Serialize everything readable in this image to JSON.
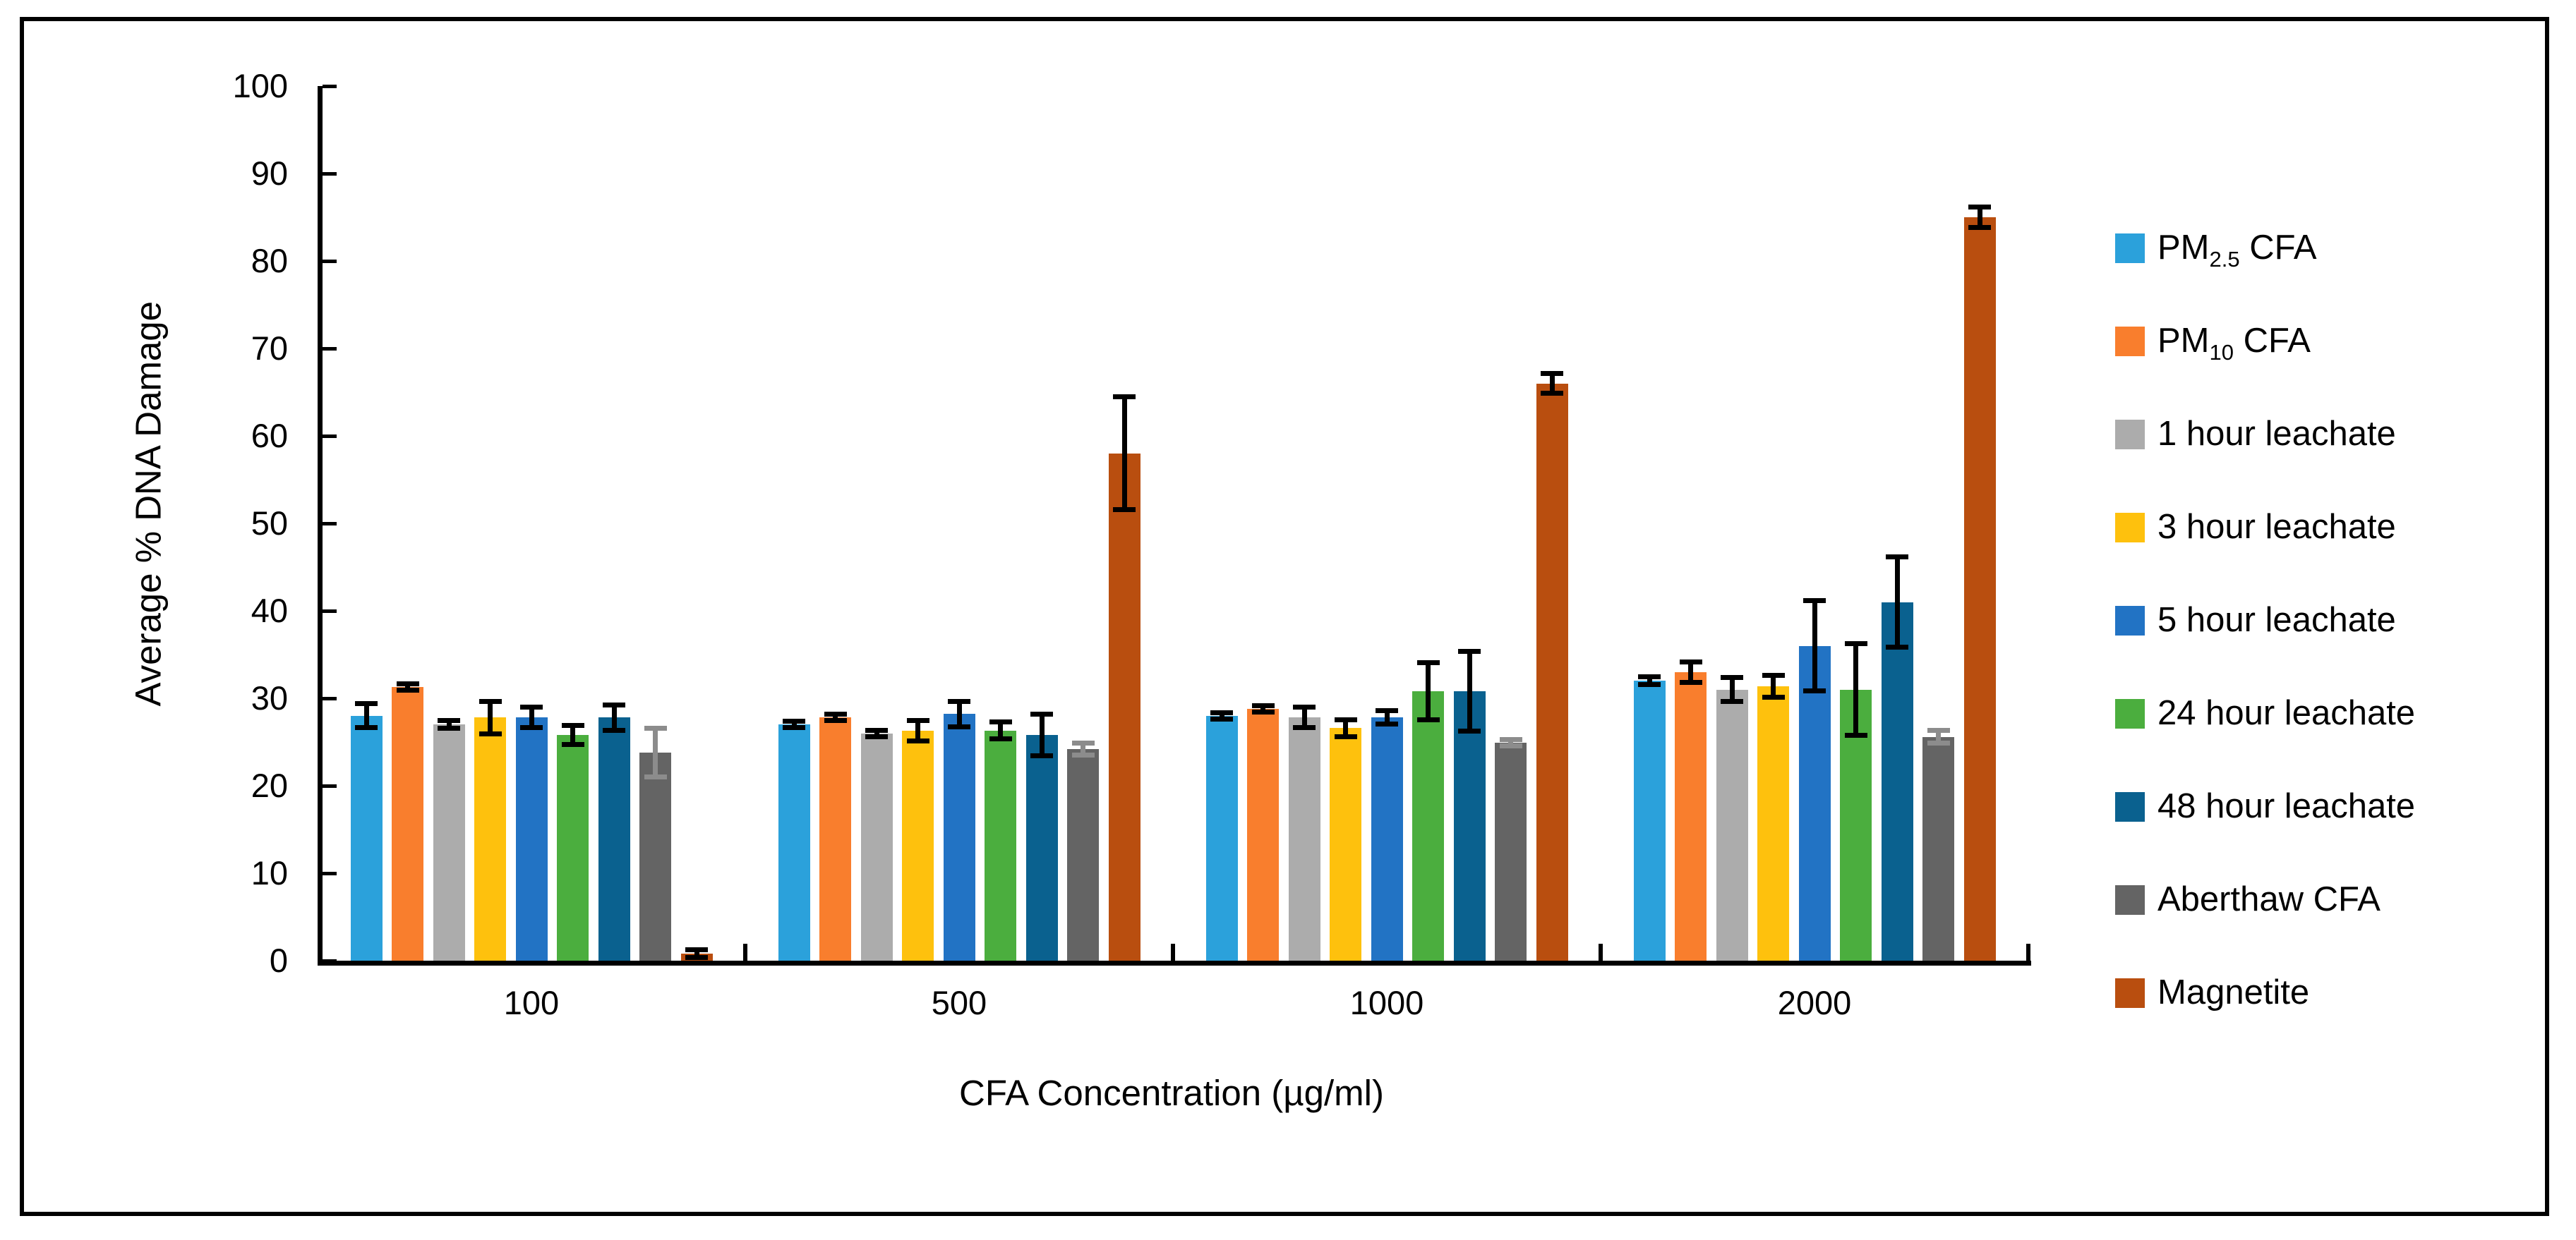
{
  "figure": {
    "y_axis_title": "Average % DNA Damage",
    "x_axis_title": "CFA Concentration (µg/ml)"
  },
  "chart_data": {
    "type": "bar",
    "title": "",
    "xlabel": "CFA Concentration (µg/ml)",
    "ylabel": "Average % DNA Damage",
    "ylim": [
      0,
      100
    ],
    "ytick_step": 10,
    "yticks": [
      0,
      10,
      20,
      30,
      40,
      50,
      60,
      70,
      80,
      90,
      100
    ],
    "grid": false,
    "error_bars": true,
    "legend_position": "right",
    "categories": [
      "100",
      "500",
      "1000",
      "2000"
    ],
    "series": [
      {
        "key": "pm25",
        "name": "PM2.5 CFA",
        "label_pre": "PM",
        "label_sub": "2.5",
        "label_post": " CFA",
        "color": "#2BA1DB",
        "error_color": "#000000",
        "values": [
          28,
          27,
          28,
          32
        ],
        "errors": [
          1.4,
          0.4,
          0.4,
          0.5
        ]
      },
      {
        "key": "pm10",
        "name": "PM10 CFA",
        "label_pre": "PM",
        "label_sub": "10",
        "label_post": " CFA",
        "color": "#F97E2D",
        "error_color": "#000000",
        "values": [
          31.3,
          27.8,
          28.8,
          33
        ],
        "errors": [
          0.4,
          0.4,
          0.4,
          1.2
        ]
      },
      {
        "key": "leachate1h",
        "name": "1 hour leachate",
        "label_pre": "1 hour leachate",
        "label_sub": "",
        "label_post": "",
        "color": "#ACACAC",
        "error_color": "#000000",
        "values": [
          27,
          26,
          27.8,
          31
        ],
        "errors": [
          0.5,
          0.4,
          1.2,
          1.4
        ]
      },
      {
        "key": "leachate3h",
        "name": "3 hour leachate",
        "label_pre": "3 hour leachate",
        "label_sub": "",
        "label_post": "",
        "color": "#FEC10D",
        "error_color": "#000000",
        "values": [
          27.8,
          26.3,
          26.6,
          31.4
        ],
        "errors": [
          1.9,
          1.2,
          1.0,
          1.3
        ]
      },
      {
        "key": "leachate5h",
        "name": "5 hour leachate",
        "label_pre": "5 hour leachate",
        "label_sub": "",
        "label_post": "",
        "color": "#2273C4",
        "error_color": "#000000",
        "values": [
          27.8,
          28.2,
          27.8,
          36
        ],
        "errors": [
          1.2,
          1.5,
          0.8,
          5.2
        ]
      },
      {
        "key": "leachate24h",
        "name": "24 hour leachate",
        "label_pre": "24 hour leachate",
        "label_sub": "",
        "label_post": "",
        "color": "#4BAE3E",
        "error_color": "#000000",
        "values": [
          25.8,
          26.3,
          30.8,
          31
        ],
        "errors": [
          1.1,
          1.0,
          3.3,
          5.3
        ]
      },
      {
        "key": "leachate48h",
        "name": "48 hour leachate",
        "label_pre": "48 hour leachate",
        "label_sub": "",
        "label_post": "",
        "color": "#0A618F",
        "error_color": "#000000",
        "values": [
          27.8,
          25.8,
          30.8,
          41
        ],
        "errors": [
          1.5,
          2.4,
          4.6,
          5.2
        ]
      },
      {
        "key": "aberthaw",
        "name": "Aberthaw CFA",
        "label_pre": "Aberthaw CFA",
        "label_sub": "",
        "label_post": "",
        "color": "#646464",
        "error_color": "#8C8C8C",
        "values": [
          23.8,
          24.2,
          24.9,
          25.6
        ],
        "errors": [
          2.8,
          0.7,
          0.4,
          0.8
        ]
      },
      {
        "key": "magnetite",
        "name": "Magnetite",
        "label_pre": "Magnetite",
        "label_sub": "",
        "label_post": "",
        "color": "#B94E0F",
        "error_color": "#000000",
        "values": [
          0.8,
          58,
          66,
          85
        ],
        "errors": [
          0.5,
          6.5,
          1.2,
          1.2
        ]
      }
    ]
  }
}
